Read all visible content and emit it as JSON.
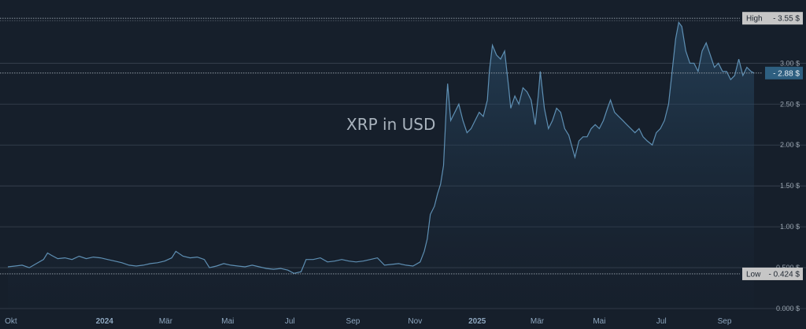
{
  "chart_data": {
    "type": "area",
    "title": "XRP in USD",
    "xlabel": "",
    "ylabel": "",
    "ylim": [
      0,
      3.6
    ],
    "grid": true,
    "y_ticks": [
      "0.000 $",
      "0.500 $",
      "1.00 $",
      "1.50 $",
      "2.00 $",
      "2.50 $",
      "3.00 $"
    ],
    "y_tick_values": [
      0,
      0.5,
      1,
      1.5,
      2,
      2.5,
      3
    ],
    "x_ticks": [
      "Okt",
      "2024",
      "Mär",
      "Mai",
      "Jul",
      "Sep",
      "Nov",
      "2025",
      "Mär",
      "Mai",
      "Jul",
      "Sep"
    ],
    "x_tick_dates": [
      "2023-10-01",
      "2024-01-01",
      "2024-03-01",
      "2024-05-01",
      "2024-07-01",
      "2024-09-01",
      "2024-11-01",
      "2025-01-01",
      "2025-03-01",
      "2025-05-01",
      "2025-07-01",
      "2025-09-01"
    ],
    "x_tick_year": [
      false,
      true,
      false,
      false,
      false,
      false,
      false,
      true,
      false,
      false,
      false,
      false
    ],
    "x_range": [
      "2023-09-28",
      "2025-09-30"
    ],
    "high": {
      "label": "High",
      "value": 3.55,
      "value_label": "3.55 $"
    },
    "low": {
      "label": "Low",
      "value": 0.424,
      "value_label": "0.424 $"
    },
    "current": {
      "value": 2.88,
      "value_label": "2.88 $"
    },
    "colors": {
      "line": "#5e8fb3",
      "current_tag": "#2e5f80",
      "tag": "#c6c6c6",
      "grid": "#3a4452"
    },
    "series": [
      {
        "x": [
          "2023-09-28",
          "2023-10-05",
          "2023-10-12",
          "2023-10-19",
          "2023-10-26",
          "2023-11-02",
          "2023-11-06",
          "2023-11-10",
          "2023-11-16",
          "2023-11-23",
          "2023-11-30",
          "2023-12-07",
          "2023-12-14",
          "2023-12-21",
          "2023-12-28",
          "2024-01-04",
          "2024-01-11",
          "2024-01-18",
          "2024-01-25",
          "2024-02-01",
          "2024-02-08",
          "2024-02-15",
          "2024-02-22",
          "2024-02-29",
          "2024-03-07",
          "2024-03-11",
          "2024-03-18",
          "2024-03-25",
          "2024-04-01",
          "2024-04-08",
          "2024-04-13",
          "2024-04-20",
          "2024-04-27",
          "2024-05-04",
          "2024-05-11",
          "2024-05-18",
          "2024-05-25",
          "2024-06-01",
          "2024-06-08",
          "2024-06-15",
          "2024-06-22",
          "2024-06-29",
          "2024-07-05",
          "2024-07-12",
          "2024-07-17",
          "2024-07-24",
          "2024-07-31",
          "2024-08-07",
          "2024-08-14",
          "2024-08-21",
          "2024-08-28",
          "2024-09-04",
          "2024-09-11",
          "2024-09-18",
          "2024-09-25",
          "2024-10-02",
          "2024-10-09",
          "2024-10-16",
          "2024-10-23",
          "2024-10-30",
          "2024-11-06",
          "2024-11-10",
          "2024-11-13",
          "2024-11-16",
          "2024-11-20",
          "2024-11-23",
          "2024-11-26",
          "2024-11-29",
          "2024-12-02",
          "2024-12-03",
          "2024-12-06",
          "2024-12-10",
          "2024-12-14",
          "2024-12-18",
          "2024-12-22",
          "2024-12-26",
          "2024-12-30",
          "2025-01-03",
          "2025-01-07",
          "2025-01-11",
          "2025-01-13",
          "2025-01-16",
          "2025-01-20",
          "2025-01-24",
          "2025-01-28",
          "2025-02-01",
          "2025-02-03",
          "2025-02-07",
          "2025-02-11",
          "2025-02-15",
          "2025-02-19",
          "2025-02-23",
          "2025-02-27",
          "2025-03-02",
          "2025-03-04",
          "2025-03-08",
          "2025-03-12",
          "2025-03-16",
          "2025-03-20",
          "2025-03-24",
          "2025-03-28",
          "2025-04-01",
          "2025-04-07",
          "2025-04-11",
          "2025-04-15",
          "2025-04-19",
          "2025-04-23",
          "2025-04-27",
          "2025-05-01",
          "2025-05-05",
          "2025-05-09",
          "2025-05-12",
          "2025-05-16",
          "2025-05-20",
          "2025-05-24",
          "2025-05-28",
          "2025-06-01",
          "2025-06-05",
          "2025-06-09",
          "2025-06-13",
          "2025-06-17",
          "2025-06-22",
          "2025-06-26",
          "2025-06-30",
          "2025-07-04",
          "2025-07-08",
          "2025-07-12",
          "2025-07-15",
          "2025-07-18",
          "2025-07-21",
          "2025-07-25",
          "2025-07-29",
          "2025-08-02",
          "2025-08-06",
          "2025-08-10",
          "2025-08-14",
          "2025-08-18",
          "2025-08-22",
          "2025-08-26",
          "2025-08-30",
          "2025-09-03",
          "2025-09-07",
          "2025-09-11",
          "2025-09-15",
          "2025-09-19",
          "2025-09-23",
          "2025-09-27",
          "2025-09-30"
        ],
        "y": [
          0.51,
          0.52,
          0.53,
          0.5,
          0.55,
          0.6,
          0.68,
          0.65,
          0.61,
          0.62,
          0.6,
          0.64,
          0.61,
          0.63,
          0.62,
          0.6,
          0.58,
          0.56,
          0.53,
          0.52,
          0.53,
          0.55,
          0.56,
          0.58,
          0.62,
          0.7,
          0.64,
          0.62,
          0.63,
          0.6,
          0.5,
          0.52,
          0.55,
          0.53,
          0.52,
          0.51,
          0.53,
          0.51,
          0.49,
          0.48,
          0.49,
          0.47,
          0.43,
          0.45,
          0.6,
          0.6,
          0.62,
          0.57,
          0.58,
          0.6,
          0.58,
          0.57,
          0.58,
          0.6,
          0.62,
          0.53,
          0.54,
          0.55,
          0.53,
          0.52,
          0.57,
          0.7,
          0.85,
          1.15,
          1.25,
          1.4,
          1.52,
          1.75,
          2.55,
          2.75,
          2.3,
          2.4,
          2.5,
          2.3,
          2.15,
          2.2,
          2.3,
          2.4,
          2.35,
          2.55,
          2.9,
          3.22,
          3.1,
          3.05,
          3.15,
          2.7,
          2.45,
          2.6,
          2.5,
          2.7,
          2.65,
          2.55,
          2.25,
          2.6,
          2.9,
          2.45,
          2.2,
          2.3,
          2.45,
          2.4,
          2.2,
          2.12,
          1.85,
          2.05,
          2.1,
          2.1,
          2.2,
          2.25,
          2.2,
          2.3,
          2.45,
          2.55,
          2.4,
          2.35,
          2.3,
          2.25,
          2.2,
          2.15,
          2.2,
          2.1,
          2.05,
          2.0,
          2.15,
          2.2,
          2.3,
          2.5,
          2.95,
          3.3,
          3.5,
          3.45,
          3.15,
          3.0,
          3.0,
          2.9,
          3.15,
          3.25,
          3.1,
          2.95,
          3.0,
          2.9,
          2.9,
          2.8,
          2.85,
          3.05,
          2.85,
          2.95,
          2.9,
          2.88
        ]
      }
    ]
  }
}
